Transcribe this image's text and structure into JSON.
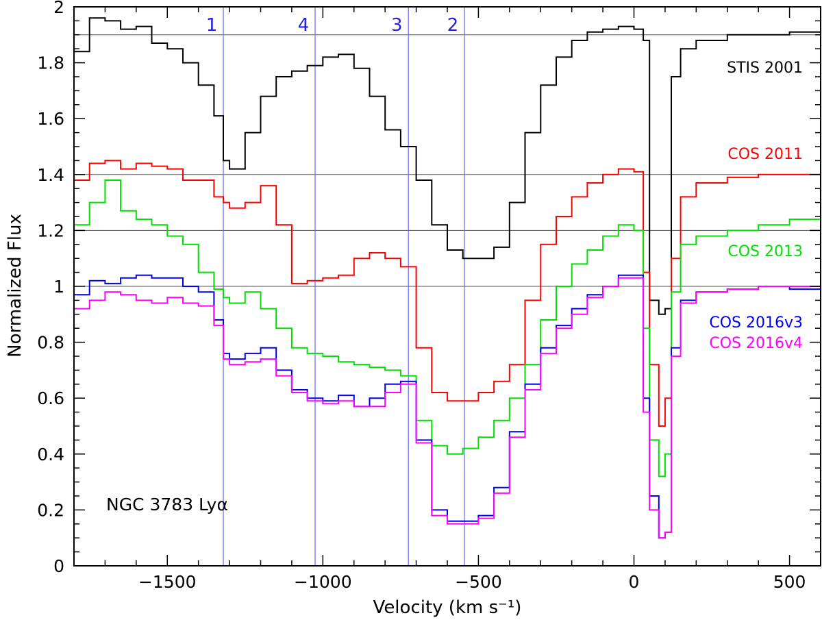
{
  "chart_data": {
    "type": "line",
    "title": "",
    "xlabel": "Velocity (km s⁻¹)",
    "ylabel": "Normalized Flux",
    "xlim": [
      -1800,
      600
    ],
    "ylim": [
      0,
      2
    ],
    "xticks": [
      -1500,
      -1000,
      -500,
      0,
      500
    ],
    "xtick_labels": [
      "−1500",
      "−1000",
      "−500",
      "0",
      "500"
    ],
    "yticks": [
      0,
      0.2,
      0.4,
      0.6,
      0.8,
      1,
      1.2,
      1.4,
      1.6,
      1.8,
      2
    ],
    "ytick_labels": [
      "0",
      "0.2",
      "0.4",
      "0.6",
      "0.8",
      "1",
      "1.2",
      "1.4",
      "1.6",
      "1.8",
      "2"
    ],
    "reference_lines_y": [
      1.0,
      1.2,
      1.4,
      1.9
    ],
    "object_label": "NGC 3783 Lyα",
    "velocity_markers": [
      {
        "label": "1",
        "x": -1320
      },
      {
        "label": "4",
        "x": -1025
      },
      {
        "label": "3",
        "x": -725
      },
      {
        "label": "2",
        "x": -545
      }
    ],
    "series": [
      {
        "name": "STIS 2001",
        "color": "#000000",
        "x": [
          -1800,
          -1750,
          -1700,
          -1650,
          -1600,
          -1550,
          -1500,
          -1450,
          -1400,
          -1350,
          -1320,
          -1300,
          -1250,
          -1200,
          -1150,
          -1100,
          -1050,
          -1000,
          -950,
          -900,
          -850,
          -800,
          -750,
          -700,
          -650,
          -600,
          -550,
          -500,
          -450,
          -400,
          -350,
          -300,
          -250,
          -200,
          -150,
          -100,
          -50,
          0,
          30,
          50,
          80,
          100,
          120,
          150,
          200,
          300,
          400,
          500,
          600
        ],
        "values": [
          1.84,
          1.96,
          1.95,
          1.92,
          1.93,
          1.87,
          1.85,
          1.8,
          1.72,
          1.61,
          1.45,
          1.42,
          1.55,
          1.68,
          1.75,
          1.77,
          1.79,
          1.82,
          1.83,
          1.78,
          1.68,
          1.56,
          1.5,
          1.38,
          1.22,
          1.13,
          1.1,
          1.1,
          1.14,
          1.3,
          1.55,
          1.72,
          1.82,
          1.88,
          1.91,
          1.92,
          1.93,
          1.92,
          1.88,
          0.95,
          0.9,
          0.92,
          1.75,
          1.85,
          1.88,
          1.9,
          1.9,
          1.91,
          1.92
        ]
      },
      {
        "name": "COS 2011",
        "color": "#ff0000",
        "x": [
          -1800,
          -1750,
          -1700,
          -1650,
          -1600,
          -1550,
          -1500,
          -1450,
          -1400,
          -1350,
          -1320,
          -1300,
          -1250,
          -1200,
          -1150,
          -1100,
          -1050,
          -1000,
          -950,
          -900,
          -850,
          -800,
          -750,
          -700,
          -650,
          -600,
          -550,
          -500,
          -450,
          -400,
          -350,
          -300,
          -250,
          -200,
          -150,
          -100,
          -50,
          0,
          30,
          50,
          80,
          100,
          120,
          150,
          200,
          300,
          400,
          500,
          600
        ],
        "values": [
          1.38,
          1.44,
          1.45,
          1.42,
          1.44,
          1.43,
          1.42,
          1.38,
          1.38,
          1.32,
          1.3,
          1.28,
          1.3,
          1.36,
          1.22,
          1.01,
          1.02,
          1.03,
          1.04,
          1.1,
          1.12,
          1.1,
          1.07,
          0.78,
          0.62,
          0.59,
          0.59,
          0.62,
          0.66,
          0.72,
          0.95,
          1.15,
          1.25,
          1.32,
          1.37,
          1.4,
          1.42,
          1.41,
          1.05,
          0.72,
          0.5,
          0.6,
          1.1,
          1.32,
          1.37,
          1.39,
          1.4,
          1.4,
          1.41
        ]
      },
      {
        "name": "COS 2013",
        "color": "#00e000",
        "x": [
          -1800,
          -1750,
          -1700,
          -1650,
          -1600,
          -1550,
          -1500,
          -1450,
          -1400,
          -1350,
          -1320,
          -1300,
          -1250,
          -1200,
          -1150,
          -1100,
          -1050,
          -1000,
          -950,
          -900,
          -850,
          -800,
          -750,
          -700,
          -650,
          -600,
          -550,
          -500,
          -450,
          -400,
          -350,
          -300,
          -250,
          -200,
          -150,
          -100,
          -50,
          0,
          30,
          50,
          80,
          100,
          120,
          150,
          200,
          300,
          400,
          500,
          600
        ],
        "values": [
          1.22,
          1.3,
          1.38,
          1.27,
          1.24,
          1.22,
          1.18,
          1.15,
          1.05,
          0.99,
          0.96,
          0.94,
          0.98,
          0.92,
          0.85,
          0.78,
          0.76,
          0.75,
          0.73,
          0.72,
          0.71,
          0.7,
          0.68,
          0.52,
          0.43,
          0.4,
          0.42,
          0.46,
          0.52,
          0.6,
          0.72,
          0.88,
          1.0,
          1.08,
          1.13,
          1.18,
          1.22,
          1.2,
          0.85,
          0.45,
          0.32,
          0.4,
          0.98,
          1.15,
          1.18,
          1.2,
          1.22,
          1.24,
          1.25
        ]
      },
      {
        "name": "COS 2016v3",
        "color": "#0000ee",
        "x": [
          -1800,
          -1750,
          -1700,
          -1650,
          -1600,
          -1550,
          -1500,
          -1450,
          -1400,
          -1350,
          -1320,
          -1300,
          -1250,
          -1200,
          -1150,
          -1100,
          -1050,
          -1000,
          -950,
          -900,
          -850,
          -800,
          -750,
          -700,
          -650,
          -600,
          -550,
          -500,
          -450,
          -400,
          -350,
          -300,
          -250,
          -200,
          -150,
          -100,
          -50,
          0,
          30,
          50,
          80,
          100,
          120,
          150,
          200,
          300,
          400,
          500,
          600
        ],
        "values": [
          0.97,
          1.02,
          1.01,
          1.03,
          1.04,
          1.03,
          1.03,
          1.0,
          0.98,
          0.88,
          0.76,
          0.74,
          0.76,
          0.78,
          0.7,
          0.63,
          0.6,
          0.59,
          0.61,
          0.57,
          0.6,
          0.65,
          0.66,
          0.45,
          0.2,
          0.16,
          0.16,
          0.18,
          0.28,
          0.48,
          0.65,
          0.78,
          0.86,
          0.92,
          0.97,
          1.0,
          1.04,
          1.04,
          0.6,
          0.25,
          0.1,
          0.12,
          0.78,
          0.95,
          0.98,
          0.99,
          1.0,
          0.99,
          0.99
        ]
      },
      {
        "name": "COS 2016v4",
        "color": "#ff00ff",
        "x": [
          -1800,
          -1750,
          -1700,
          -1650,
          -1600,
          -1550,
          -1500,
          -1450,
          -1400,
          -1350,
          -1320,
          -1300,
          -1250,
          -1200,
          -1150,
          -1100,
          -1050,
          -1000,
          -950,
          -900,
          -850,
          -800,
          -750,
          -700,
          -650,
          -600,
          -550,
          -500,
          -450,
          -400,
          -350,
          -300,
          -250,
          -200,
          -150,
          -100,
          -50,
          0,
          30,
          50,
          80,
          100,
          120,
          150,
          200,
          300,
          400,
          500,
          600
        ],
        "values": [
          0.92,
          0.95,
          0.98,
          0.97,
          0.95,
          0.94,
          0.96,
          0.94,
          0.93,
          0.86,
          0.74,
          0.72,
          0.73,
          0.74,
          0.68,
          0.62,
          0.59,
          0.58,
          0.59,
          0.57,
          0.57,
          0.62,
          0.65,
          0.44,
          0.18,
          0.15,
          0.15,
          0.17,
          0.26,
          0.46,
          0.63,
          0.76,
          0.85,
          0.9,
          0.96,
          1.0,
          1.03,
          1.03,
          0.55,
          0.2,
          0.1,
          0.12,
          0.75,
          0.94,
          0.98,
          0.99,
          1.0,
          1.0,
          1.0
        ]
      }
    ]
  }
}
